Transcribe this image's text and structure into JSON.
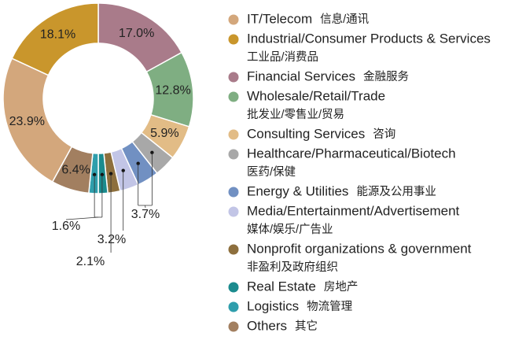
{
  "chart_data": {
    "type": "donut",
    "categories": [
      "IT/Telecom",
      "Industrial/Consumer Products & Services",
      "Financial Services",
      "Wholesale/Retail/Trade",
      "Consulting Services",
      "Healthcare/Pharmaceutical/Biotech",
      "Energy & Utilities",
      "Media/Entertainment/Advertisement",
      "Nonprofit organizations & government",
      "Real Estate",
      "Logistics",
      "Others"
    ],
    "categories_zh": [
      "信息/通讯",
      "工业品/消费品",
      "金融服务",
      "批发业/零售业/贸易",
      "咨询",
      "医药/保健",
      "能源及公用事业",
      "媒体/娱乐/广告业",
      "非盈利及政府组织",
      "房地产",
      "物流管理",
      "其它"
    ],
    "values": [
      23.9,
      18.1,
      17.0,
      12.8,
      5.9,
      3.7,
      3.7,
      3.2,
      2.1,
      1.6,
      1.6,
      6.4
    ],
    "value_labels": [
      "23.9%",
      "18.1%",
      "17.0%",
      "12.8%",
      "5.9%",
      "3.7%",
      null,
      "3.2%",
      "2.1%",
      "1.6%",
      null,
      "6.4%"
    ],
    "colors": [
      "#d3a77c",
      "#c9962c",
      "#a97b8a",
      "#7fae82",
      "#e2bc86",
      "#a8a8a8",
      "#7190c2",
      "#c2c5e6",
      "#8d6f3d",
      "#1b8b8e",
      "#2f9eac",
      "#a27f60"
    ]
  }
}
